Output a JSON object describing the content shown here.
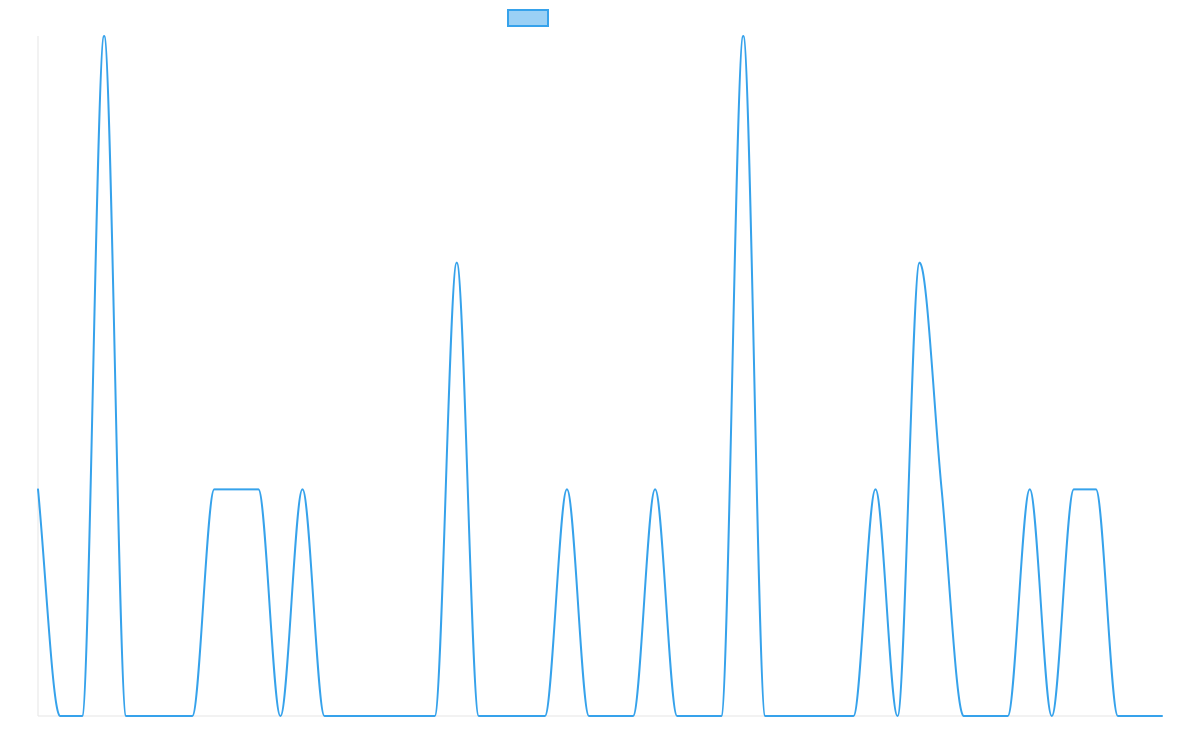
{
  "chart_data": {
    "type": "line",
    "title": "",
    "xlabel": "",
    "ylabel": "",
    "x": [
      0,
      1,
      2,
      3,
      4,
      5,
      6,
      7,
      8,
      9,
      10,
      11,
      12,
      13,
      14,
      15,
      16,
      17,
      18,
      19,
      20,
      21,
      22,
      23,
      24,
      25,
      26,
      27,
      28,
      29,
      30,
      31,
      32,
      33,
      34,
      35,
      36,
      37,
      38,
      39,
      40,
      41,
      42,
      43,
      44,
      45,
      46,
      47,
      48,
      49,
      50,
      51
    ],
    "series": [
      {
        "name": "",
        "color": "#36a2eb",
        "fill_color": "#9ad0f5",
        "values": [
          1,
          0,
          0,
          3,
          0,
          0,
          0,
          0,
          1,
          1,
          1,
          0,
          1,
          0,
          0,
          0,
          0,
          0,
          0,
          2,
          0,
          0,
          0,
          0,
          1,
          0,
          0,
          0,
          1,
          0,
          0,
          0,
          3,
          0,
          0,
          0,
          0,
          0,
          1,
          0,
          2,
          1,
          0,
          0,
          0,
          1,
          0,
          1,
          1,
          0,
          0,
          0
        ]
      }
    ],
    "ylim": [
      0,
      3
    ],
    "curve": "monotone",
    "grid": false,
    "legend": {
      "position": "top",
      "show_label": false
    }
  }
}
